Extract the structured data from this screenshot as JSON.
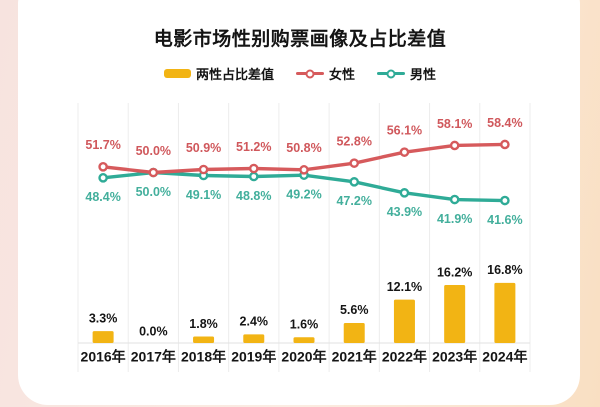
{
  "title": "电影市场性别购票画像及占比差值",
  "legend": [
    {
      "label": "两性占比差值",
      "type": "bar",
      "color": "#F2B414"
    },
    {
      "label": "女性",
      "type": "line",
      "color": "#D65A5C"
    },
    {
      "label": "男性",
      "type": "line",
      "color": "#2FAB97"
    }
  ],
  "colors": {
    "bar": "#F2B414",
    "female_line": "#D65A5C",
    "female_label": "#D0585C",
    "male_line": "#2FAB97",
    "male_label": "#43AF9C",
    "text_dark": "#151515",
    "gridline": "#ECECEC",
    "baseline": "#E2E2E2"
  },
  "chart_data": {
    "type": "combo",
    "title": "电影市场性别购票画像及占比差值",
    "categories": [
      "2016年",
      "2017年",
      "2018年",
      "2019年",
      "2020年",
      "2021年",
      "2022年",
      "2023年",
      "2024年"
    ],
    "unit": "%",
    "grid": "vertical-bands",
    "legend_position": "top",
    "series": [
      {
        "name": "两性占比差值",
        "type": "bar",
        "color": "#F2B414",
        "values": [
          3.3,
          0.0,
          1.8,
          2.4,
          1.6,
          5.6,
          12.1,
          16.2,
          16.8
        ]
      },
      {
        "name": "女性",
        "type": "line",
        "color": "#D65A5C",
        "values": [
          51.7,
          50.0,
          50.9,
          51.2,
          50.8,
          52.8,
          56.1,
          58.1,
          58.4
        ]
      },
      {
        "name": "男性",
        "type": "line",
        "color": "#2FAB97",
        "values": [
          48.4,
          50.0,
          49.1,
          48.8,
          49.2,
          47.2,
          43.9,
          41.9,
          41.6
        ]
      }
    ]
  }
}
